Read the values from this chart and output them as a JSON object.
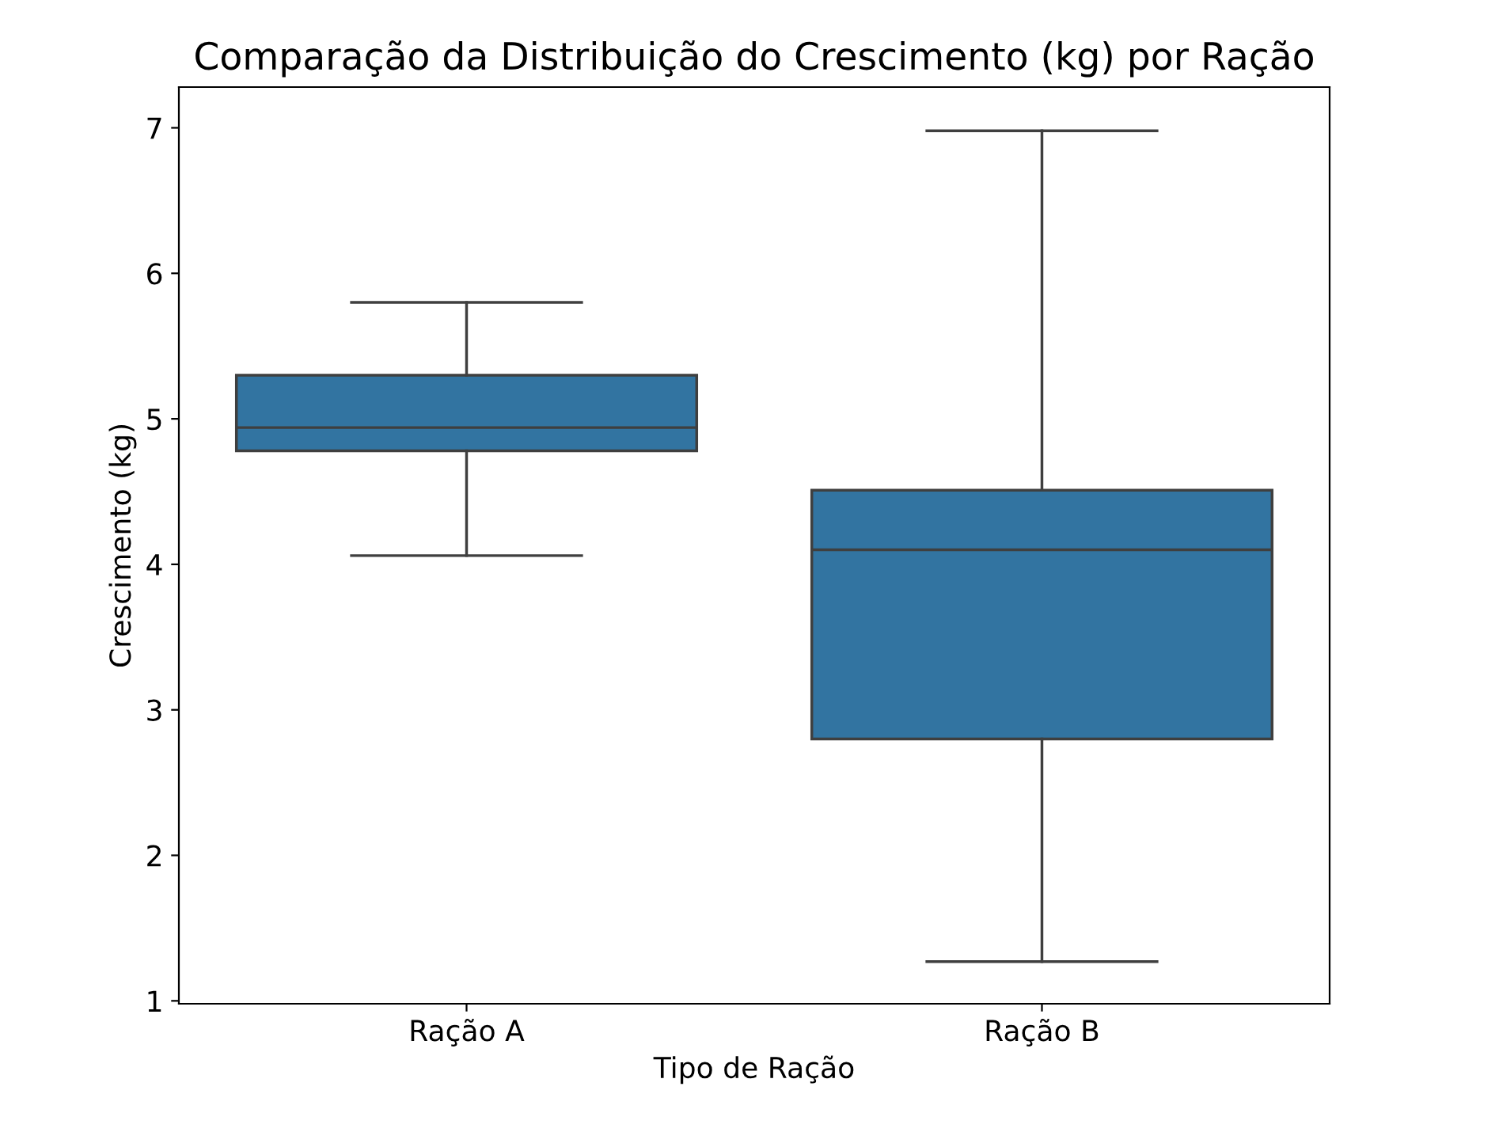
{
  "chart_data": {
    "type": "box",
    "title": "Comparação da Distribuição do Crescimento (kg) por Ração",
    "xlabel": "Tipo de Ração",
    "ylabel": "Crescimento (kg)",
    "categories": [
      "Ração A",
      "Ração B"
    ],
    "series": [
      {
        "color": "#3274a1",
        "boxes": [
          {
            "low": 4.06,
            "q1": 4.78,
            "median": 4.94,
            "q3": 5.3,
            "high": 5.8
          },
          {
            "low": 1.27,
            "q1": 2.8,
            "median": 4.1,
            "q3": 4.51,
            "high": 6.98
          }
        ]
      }
    ],
    "ylim": [
      0.98,
      7.28
    ],
    "yticks": [
      1,
      2,
      3,
      4,
      5,
      6,
      7
    ],
    "grid": false,
    "legend": false
  }
}
